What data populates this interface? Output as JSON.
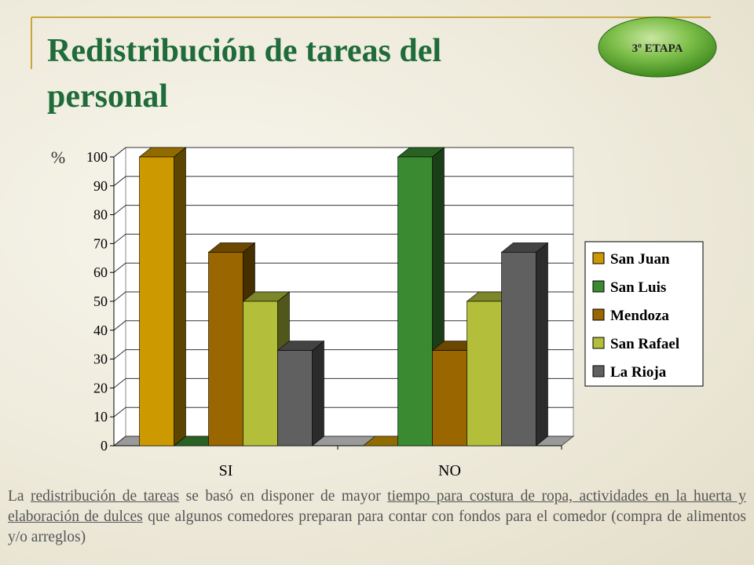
{
  "chart_data": {
    "type": "bar3d",
    "title": "Redistribución de tareas del personal",
    "badge": "3º ETAPA",
    "y_label": "%",
    "categories": [
      "SI",
      "NO"
    ],
    "series": [
      {
        "name": "San Juan",
        "color": "#cc9900",
        "values": [
          100,
          0
        ]
      },
      {
        "name": "San Luis",
        "color": "#3a8a32",
        "values": [
          0,
          100
        ]
      },
      {
        "name": "Mendoza",
        "color": "#996600",
        "values": [
          67,
          33
        ]
      },
      {
        "name": "San Rafael",
        "color": "#b3bf3a",
        "values": [
          50,
          50
        ]
      },
      {
        "name": "La Rioja",
        "color": "#606060",
        "values": [
          33,
          67
        ]
      }
    ],
    "ylim": [
      0,
      100
    ],
    "yticks": [
      0,
      10,
      20,
      30,
      40,
      50,
      60,
      70,
      80,
      90,
      100
    ],
    "grid": true,
    "legend": "right",
    "caption": [
      "La ",
      "redistribución de tareas",
      " se basó en disponer de mayor ",
      "tiempo para costura de ropa, actividades en la huerta y elaboración de dulces",
      " que algunos comedores preparan para contar con fondos para el comedor (compra de alimentos y/o arreglos)"
    ]
  }
}
